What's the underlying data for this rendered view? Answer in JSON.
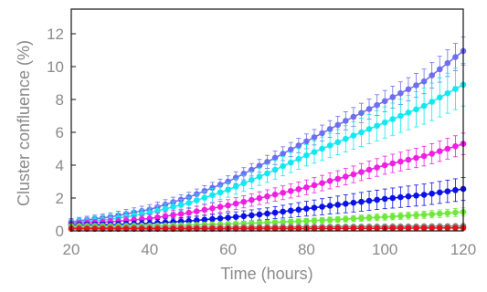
{
  "chart_data": {
    "type": "line",
    "title": "",
    "xlabel": "Time (hours)",
    "ylabel": "Cluster confluence (%)",
    "xlim": [
      20,
      120
    ],
    "ylim": [
      0,
      13.5
    ],
    "xticks": [
      20,
      40,
      60,
      80,
      100,
      120
    ],
    "yticks": [
      0,
      2,
      4,
      6,
      8,
      10,
      12
    ],
    "grid": false,
    "legend": "none",
    "series": [
      {
        "color": "#6e6ef2",
        "x": [
          20,
          30,
          40,
          50,
          60,
          70,
          80,
          90,
          100,
          110,
          120
        ],
        "y": [
          0.55,
          0.85,
          1.3,
          2.05,
          3.0,
          4.2,
          5.45,
          6.7,
          7.9,
          9.1,
          10.95
        ],
        "err": [
          0.2,
          0.25,
          0.3,
          0.3,
          0.35,
          0.4,
          0.45,
          0.55,
          0.65,
          0.75,
          0.85
        ]
      },
      {
        "color": "#12e8f0",
        "x": [
          20,
          30,
          40,
          50,
          60,
          70,
          80,
          90,
          100,
          110,
          120
        ],
        "y": [
          0.5,
          0.7,
          1.1,
          1.7,
          2.5,
          3.5,
          4.6,
          5.6,
          6.6,
          7.6,
          8.9
        ],
        "err": [
          0.2,
          0.3,
          0.3,
          0.35,
          0.45,
          0.55,
          0.65,
          0.8,
          0.95,
          1.1,
          1.3
        ]
      },
      {
        "color": "#f01ee0",
        "x": [
          20,
          30,
          40,
          50,
          60,
          70,
          80,
          90,
          100,
          110,
          120
        ],
        "y": [
          0.45,
          0.55,
          0.75,
          1.1,
          1.55,
          2.1,
          2.65,
          3.3,
          4.0,
          4.55,
          5.3
        ],
        "err": [
          0.15,
          0.2,
          0.25,
          0.3,
          0.35,
          0.4,
          0.45,
          0.5,
          0.55,
          0.6,
          0.65
        ]
      },
      {
        "color": "#0a10e8",
        "x": [
          20,
          30,
          40,
          50,
          60,
          70,
          80,
          90,
          100,
          110,
          120
        ],
        "y": [
          0.35,
          0.38,
          0.45,
          0.6,
          0.8,
          1.05,
          1.35,
          1.65,
          1.95,
          2.2,
          2.55
        ],
        "err": [
          0.15,
          0.15,
          0.2,
          0.25,
          0.3,
          0.35,
          0.45,
          0.55,
          0.6,
          0.65,
          0.7
        ]
      },
      {
        "color": "#6ee83a",
        "x": [
          20,
          30,
          40,
          50,
          60,
          70,
          80,
          90,
          100,
          110,
          120
        ],
        "y": [
          0.3,
          0.3,
          0.32,
          0.35,
          0.42,
          0.5,
          0.6,
          0.72,
          0.85,
          0.98,
          1.15
        ],
        "err": [
          0.08,
          0.08,
          0.1,
          0.1,
          0.12,
          0.14,
          0.16,
          0.18,
          0.2,
          0.22,
          0.25
        ]
      },
      {
        "color": "#8a8a8a",
        "x": [
          20,
          30,
          40,
          50,
          60,
          70,
          80,
          90,
          100,
          110,
          120
        ],
        "y": [
          0.2,
          0.2,
          0.21,
          0.22,
          0.23,
          0.24,
          0.25,
          0.26,
          0.27,
          0.28,
          0.3
        ],
        "err": [
          0.05,
          0.05,
          0.05,
          0.05,
          0.05,
          0.05,
          0.05,
          0.05,
          0.05,
          0.05,
          0.05
        ]
      },
      {
        "color": "#e8101a",
        "x": [
          20,
          30,
          40,
          50,
          60,
          70,
          80,
          90,
          100,
          110,
          120
        ],
        "y": [
          0.12,
          0.12,
          0.12,
          0.13,
          0.13,
          0.14,
          0.14,
          0.15,
          0.16,
          0.17,
          0.18
        ],
        "err": [
          0.03,
          0.03,
          0.03,
          0.03,
          0.03,
          0.03,
          0.03,
          0.03,
          0.03,
          0.03,
          0.03
        ]
      }
    ]
  }
}
